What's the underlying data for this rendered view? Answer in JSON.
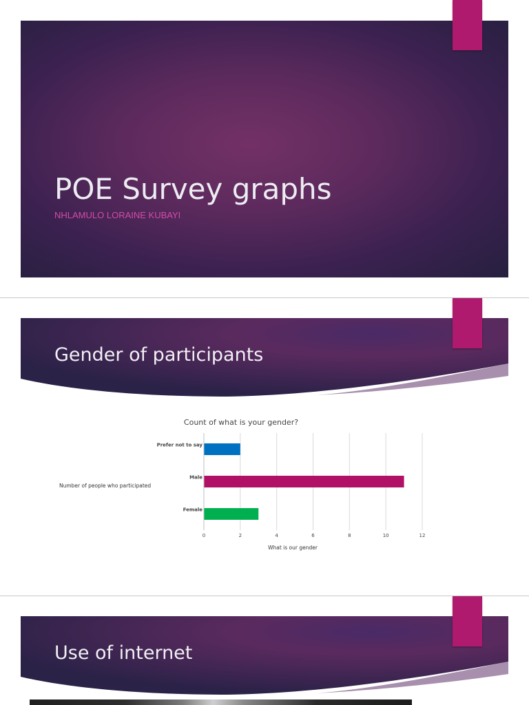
{
  "slides": {
    "title_slide": {
      "title": "POE Survey graphs",
      "subtitle": "NHLAMULO LORAINE KUBAYI"
    },
    "gender_slide": {
      "title": "Gender of participants"
    },
    "internet_slide": {
      "title": "Use of internet"
    }
  },
  "colors": {
    "accent_tab": "#b01a6e",
    "subtitle": "#d24ca8",
    "slide_bg": "#5d2a5d"
  },
  "chart_data": {
    "type": "bar",
    "orientation": "horizontal",
    "title": "Count of what is your gender?",
    "ylabel": "Number of people who participated",
    "xlabel": "What is our gender",
    "categories": [
      "Prefer not to say",
      "Male",
      "Female"
    ],
    "values": [
      2,
      11,
      3
    ],
    "bar_colors": [
      "#0070c0",
      "#b01166",
      "#00b050"
    ],
    "xlim": [
      0,
      12
    ],
    "xticks": [
      "0",
      "2",
      "4",
      "6",
      "8",
      "10",
      "12"
    ],
    "grid": true,
    "legend": "none"
  }
}
